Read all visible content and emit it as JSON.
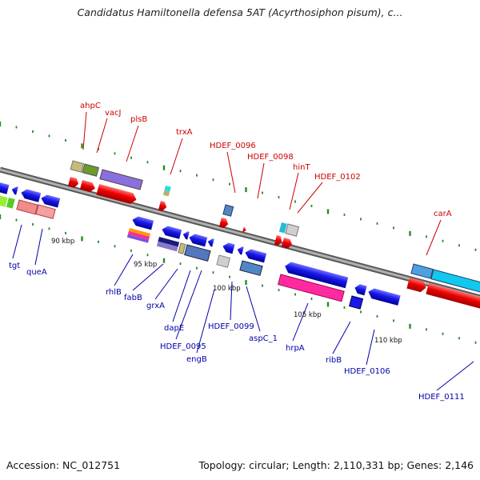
{
  "header": {
    "title": "Candidatus Hamiltonella defensa 5AT (Acyrthosiphon pisum), c..."
  },
  "footer": {
    "accession": "Accession: NC_012751",
    "summary": "Topology: circular; Length: 2,110,331 bp; Genes: 2,146"
  },
  "colors": {
    "forward_label": "#cc0000",
    "reverse_label": "#0000aa",
    "backbone": "#808080",
    "tick": "#228b22"
  },
  "scale_labels": [
    "90 kbp",
    "95 kbp",
    "100 kbp",
    "105 kbp",
    "110 kbp"
  ],
  "forward_labels": [
    "ahpC",
    "vacJ",
    "plsB",
    "trxA",
    "HDEF_0096",
    "HDEF_0098",
    "hinT",
    "HDEF_0102",
    "carA"
  ],
  "reverse_labels": [
    "tgt",
    "queA",
    "rhlB",
    "fabB",
    "grxA",
    "dapE",
    "HDEF_0095",
    "engB",
    "HDEF_0099",
    "aspC_1",
    "hrpA",
    "ribB",
    "HDEF_0106",
    "HDEF_0111"
  ]
}
